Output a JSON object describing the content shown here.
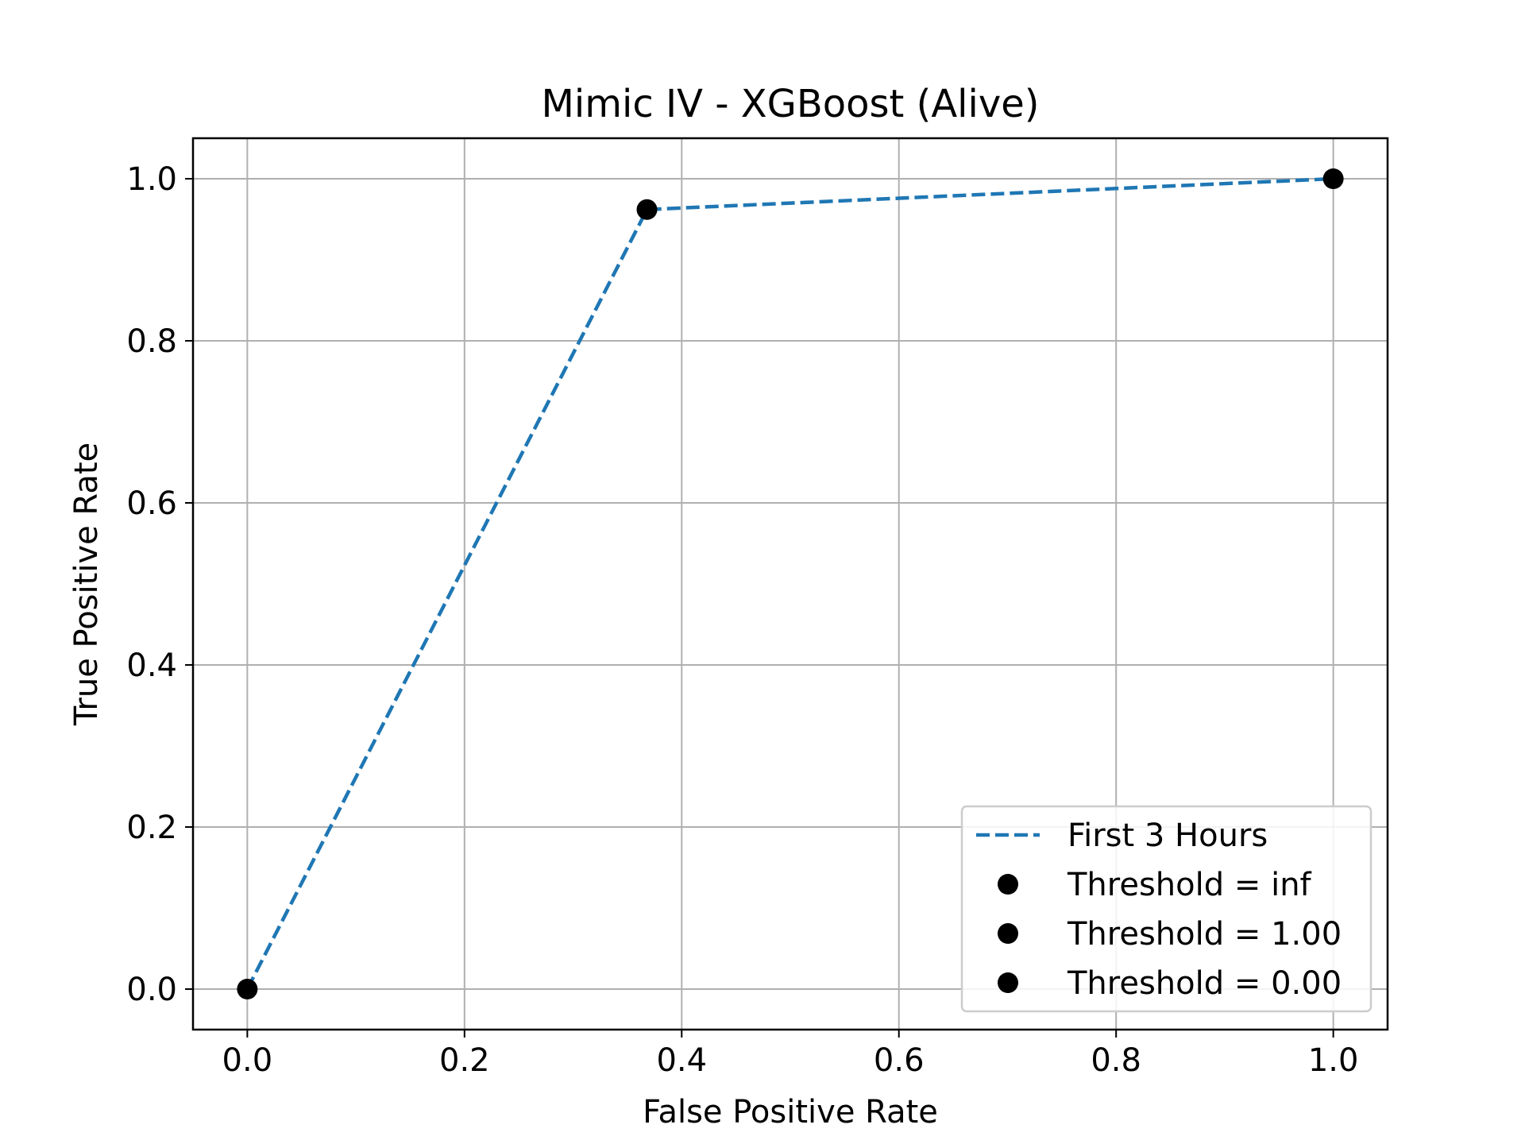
{
  "chart_data": {
    "type": "line",
    "title": "Mimic IV - XGBoost (Alive)",
    "xlabel": "False Positive Rate",
    "ylabel": "True Positive Rate",
    "xlim": [
      -0.05,
      1.05
    ],
    "ylim": [
      -0.05,
      1.05
    ],
    "xticks": [
      0.0,
      0.2,
      0.4,
      0.6,
      0.8,
      1.0
    ],
    "xtick_labels": [
      "0.0",
      "0.2",
      "0.4",
      "0.6",
      "0.8",
      "1.0"
    ],
    "yticks": [
      0.0,
      0.2,
      0.4,
      0.6,
      0.8,
      1.0
    ],
    "ytick_labels": [
      "0.0",
      "0.2",
      "0.4",
      "0.6",
      "0.8",
      "1.0"
    ],
    "grid": true,
    "legend_position": "lower-right",
    "series": [
      {
        "name": "First 3 Hours",
        "style": "dashed",
        "color": "#1f77b4",
        "x": [
          0.0,
          0.368,
          1.0
        ],
        "y": [
          0.0,
          0.962,
          1.0
        ]
      }
    ],
    "points": [
      {
        "name": "Threshold = inf",
        "x": 0.0,
        "y": 0.0,
        "color": "#000000"
      },
      {
        "name": "Threshold = 1.00",
        "x": 0.368,
        "y": 0.962,
        "color": "#000000"
      },
      {
        "name": "Threshold = 0.00",
        "x": 1.0,
        "y": 1.0,
        "color": "#000000"
      }
    ]
  }
}
